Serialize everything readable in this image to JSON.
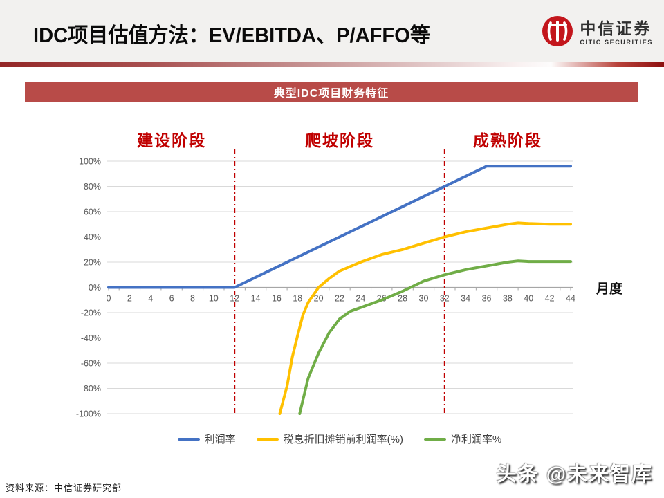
{
  "header": {
    "title": "IDC项目估值方法：EV/EBITDA、P/AFFO等",
    "logo": {
      "cn": "中信证券",
      "en": "CITIC SECURITIES",
      "brand_color": "#c3161c"
    }
  },
  "banner": {
    "text": "典型IDC项目财务特征",
    "bg_color": "#b84b48"
  },
  "chart_data": {
    "type": "line",
    "title": "",
    "xlabel": "月度",
    "ylabel": "",
    "xlim": [
      0,
      44
    ],
    "ylim": [
      -100,
      100
    ],
    "x_ticks": [
      0,
      2,
      4,
      6,
      8,
      10,
      12,
      14,
      16,
      18,
      20,
      22,
      24,
      26,
      28,
      30,
      32,
      34,
      36,
      38,
      40,
      42,
      44
    ],
    "y_ticks": [
      100,
      80,
      60,
      40,
      20,
      0,
      -20,
      -40,
      -60,
      -80,
      -100
    ],
    "y_tick_format": "percent",
    "grid": true,
    "legend_position": "bottom",
    "phase_label_color": "#c00000",
    "phase_divider_color": "#c00000",
    "phase_divider_x": [
      12,
      32
    ],
    "phases": [
      {
        "label": "建设阶段",
        "x_from": 0,
        "x_to": 12
      },
      {
        "label": "爬坡阶段",
        "x_from": 12,
        "x_to": 32
      },
      {
        "label": "成熟阶段",
        "x_from": 32,
        "x_to": 44
      }
    ],
    "series": [
      {
        "name": "利润率",
        "color": "#4472c4",
        "x": [
          0,
          2,
          4,
          6,
          8,
          10,
          12,
          14,
          16,
          18,
          20,
          22,
          24,
          26,
          28,
          30,
          32,
          34,
          36,
          38,
          40,
          42,
          44
        ],
        "y": [
          0,
          0,
          0,
          0,
          0,
          0,
          0,
          8,
          16,
          24,
          32,
          40,
          48,
          56,
          64,
          72,
          80,
          88,
          96,
          96,
          96,
          96,
          96
        ]
      },
      {
        "name": "税息折旧摊销前利润率(%)",
        "color": "#ffc000",
        "x": [
          16.3,
          17,
          17.5,
          18,
          18.5,
          19,
          20,
          21,
          22,
          24,
          26,
          28,
          30,
          32,
          34,
          36,
          38,
          39,
          40,
          42,
          44
        ],
        "y": [
          -100,
          -78,
          -55,
          -38,
          -22,
          -12,
          0,
          7,
          13,
          20,
          26,
          30,
          35,
          40,
          44,
          47,
          50,
          51,
          50.5,
          50,
          50
        ]
      },
      {
        "name": "净利润率%",
        "color": "#70ad47",
        "x": [
          18.2,
          19,
          20,
          21,
          22,
          23,
          24,
          26,
          28,
          30,
          32,
          34,
          36,
          38,
          39,
          40,
          42,
          44
        ],
        "y": [
          -100,
          -72,
          -52,
          -36,
          -25,
          -19,
          -16,
          -10,
          -3,
          5,
          10,
          14,
          17,
          20,
          21,
          20.5,
          20.5,
          20.5
        ]
      }
    ]
  },
  "footer": {
    "source": "资料来源：中信证券研究部",
    "watermark": "头条 @未来智库"
  }
}
